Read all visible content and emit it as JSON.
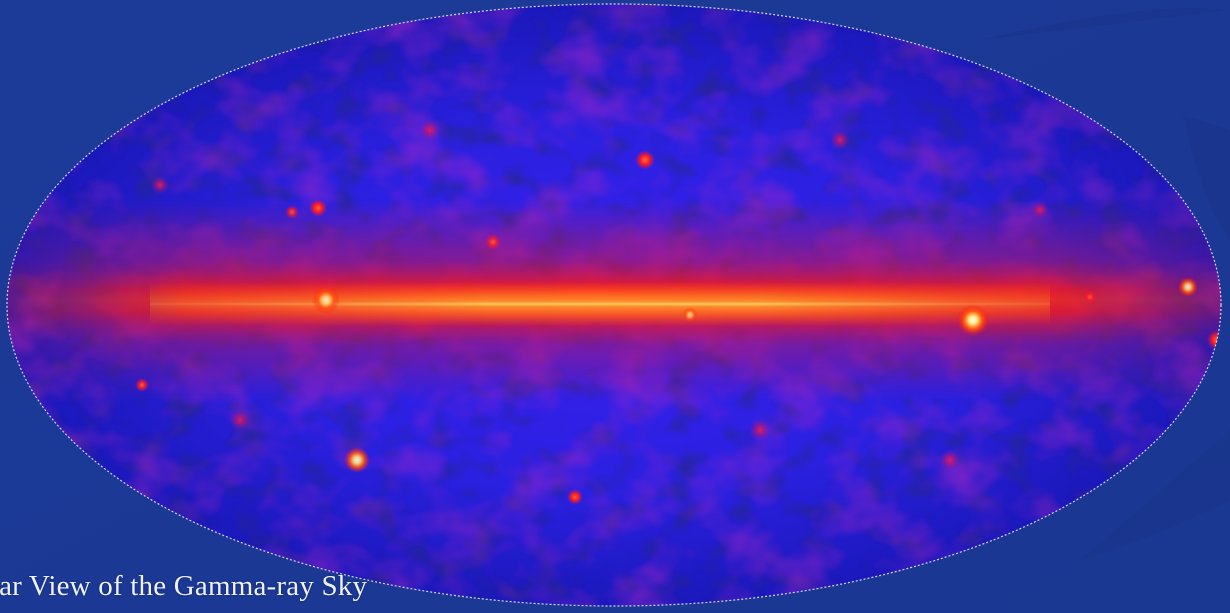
{
  "slide": {
    "background_color": "#1e3c9b",
    "caption": "ear View of the Gamma-ray Sky"
  },
  "sky_map": {
    "projection": "all-sky elliptical (Aitoff/Hammer)",
    "colormap": [
      "#0a0a8c",
      "#1e28e6",
      "#6a2ad6",
      "#c61c6a",
      "#ff1a10",
      "#ff8a2a",
      "#ffe070",
      "#ffffff"
    ],
    "features": [
      "galactic-plane-band",
      "bright-point-source-right",
      "point-sources-scattered"
    ]
  }
}
